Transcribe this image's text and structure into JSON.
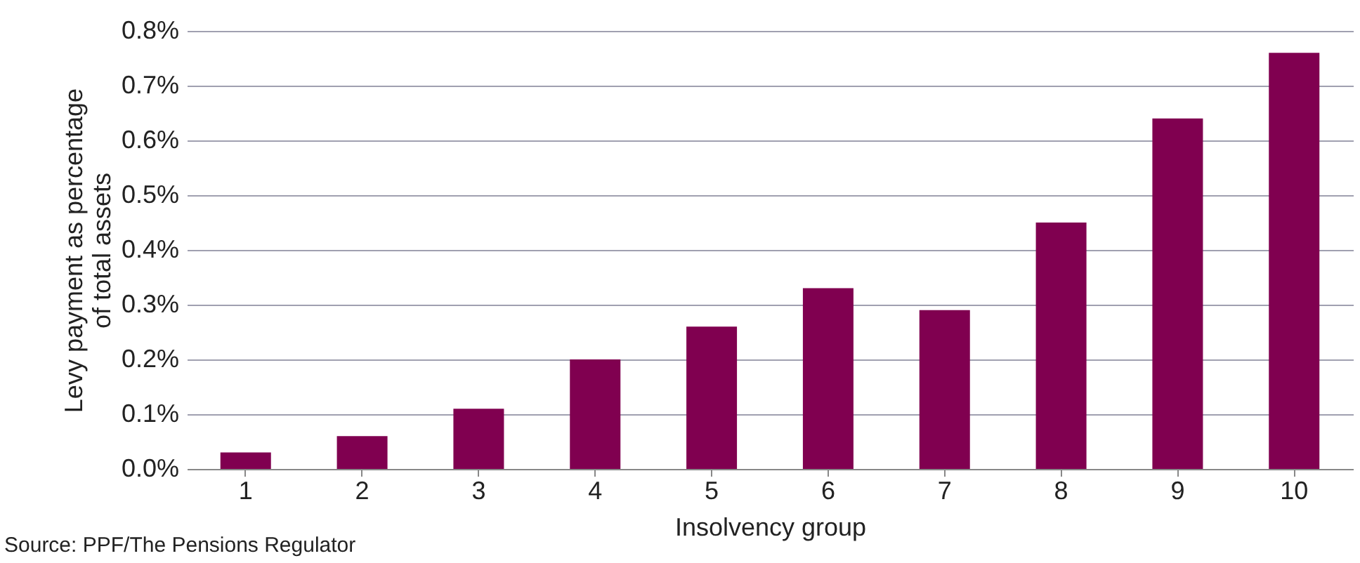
{
  "chart_data": {
    "type": "bar",
    "xlabel": "Insolvency group",
    "ylabel": "Levy payment as percentage\nof total assets",
    "categories": [
      "1",
      "2",
      "3",
      "4",
      "5",
      "6",
      "7",
      "8",
      "9",
      "10"
    ],
    "values": [
      0.03,
      0.06,
      0.11,
      0.2,
      0.26,
      0.33,
      0.29,
      0.45,
      0.64,
      0.76
    ],
    "color": "#800050",
    "ylim": [
      0,
      0.8
    ],
    "yticks": [
      {
        "value": 0,
        "label": "0.0%"
      },
      {
        "value": 0.1,
        "label": "0.1%"
      },
      {
        "value": 0.2,
        "label": "0.2%"
      },
      {
        "value": 0.3,
        "label": "0.3%"
      },
      {
        "value": 0.4,
        "label": "0.4%"
      },
      {
        "value": 0.5,
        "label": "0.5%"
      },
      {
        "value": 0.6,
        "label": "0.6%"
      },
      {
        "value": 0.7,
        "label": "0.7%"
      },
      {
        "value": 0.8,
        "label": "0.8%"
      }
    ],
    "grid": "y",
    "annotations": [
      "Source: PPF/The Pensions Regulator"
    ]
  }
}
